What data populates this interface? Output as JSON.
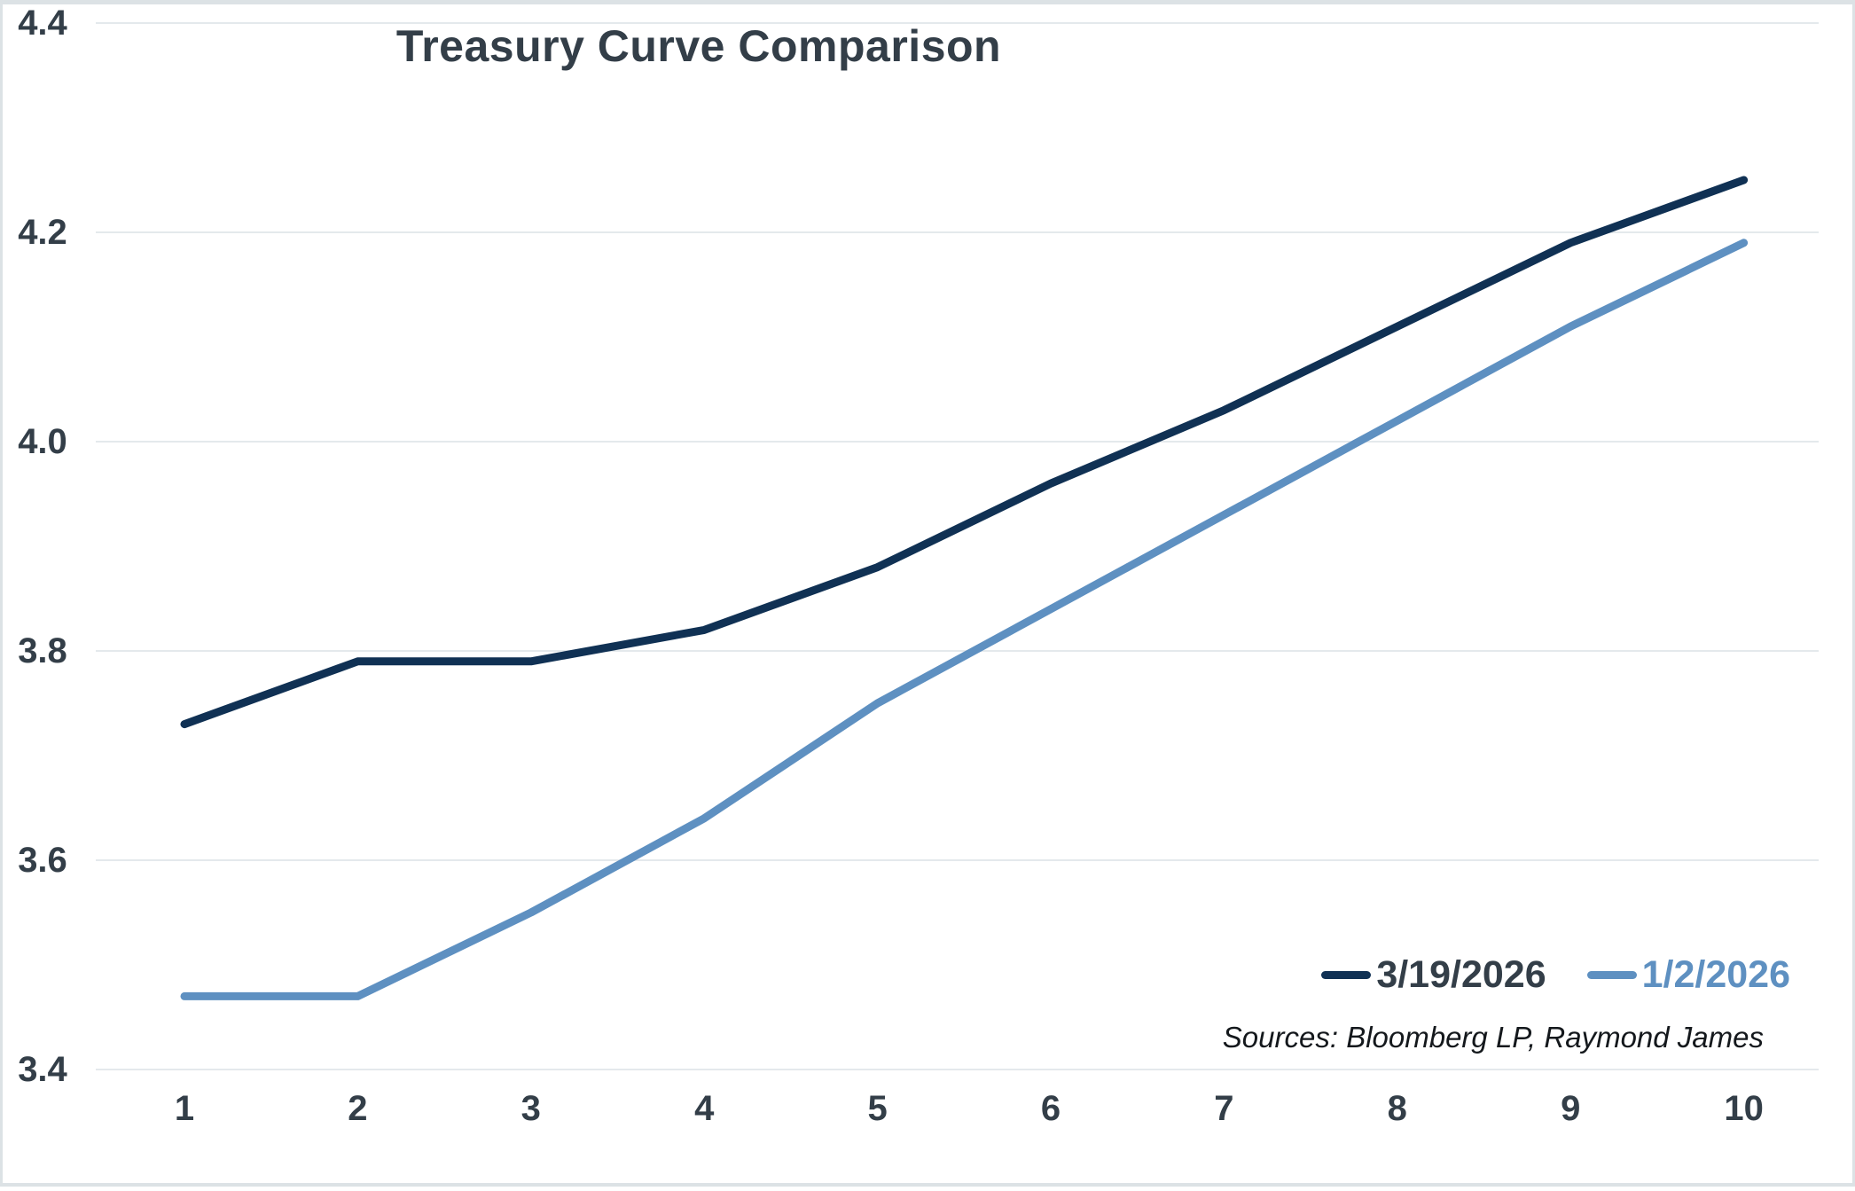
{
  "title": "Treasury Curve Comparison",
  "source_note": "Sources: Bloomberg LP, Raymond James",
  "colors": {
    "series_dark": "#103154",
    "series_light": "#5e90c1",
    "axis_text": "#333e48",
    "gridline": "#e4e9ec",
    "border": "#dce2e5",
    "source_text": "#14181c"
  },
  "chart_data": {
    "type": "line",
    "title": "Treasury Curve Comparison",
    "categories": [
      "1",
      "2",
      "3",
      "4",
      "5",
      "6",
      "7",
      "8",
      "9",
      "10"
    ],
    "series": [
      {
        "name": "3/19/2026",
        "color": "#103154",
        "label_color": "#333e48",
        "values": [
          3.73,
          3.79,
          3.79,
          3.82,
          3.88,
          3.96,
          4.03,
          4.11,
          4.19,
          4.25
        ]
      },
      {
        "name": "1/2/2026",
        "color": "#5e90c1",
        "label_color": "#5e90c1",
        "values": [
          3.47,
          3.47,
          3.55,
          3.64,
          3.75,
          3.84,
          3.93,
          4.02,
          4.11,
          4.19
        ]
      }
    ],
    "ylim": [
      3.4,
      4.4
    ],
    "ytick_step": 0.2,
    "ytick_labels": [
      "3.4",
      "3.6",
      "3.8",
      "4.0",
      "4.2",
      "4.4"
    ],
    "xlabel": "",
    "ylabel": "",
    "grid": true,
    "legend_position": "inside-bottom-right",
    "annotations": [
      "Sources: Bloomberg LP, Raymond James"
    ]
  }
}
